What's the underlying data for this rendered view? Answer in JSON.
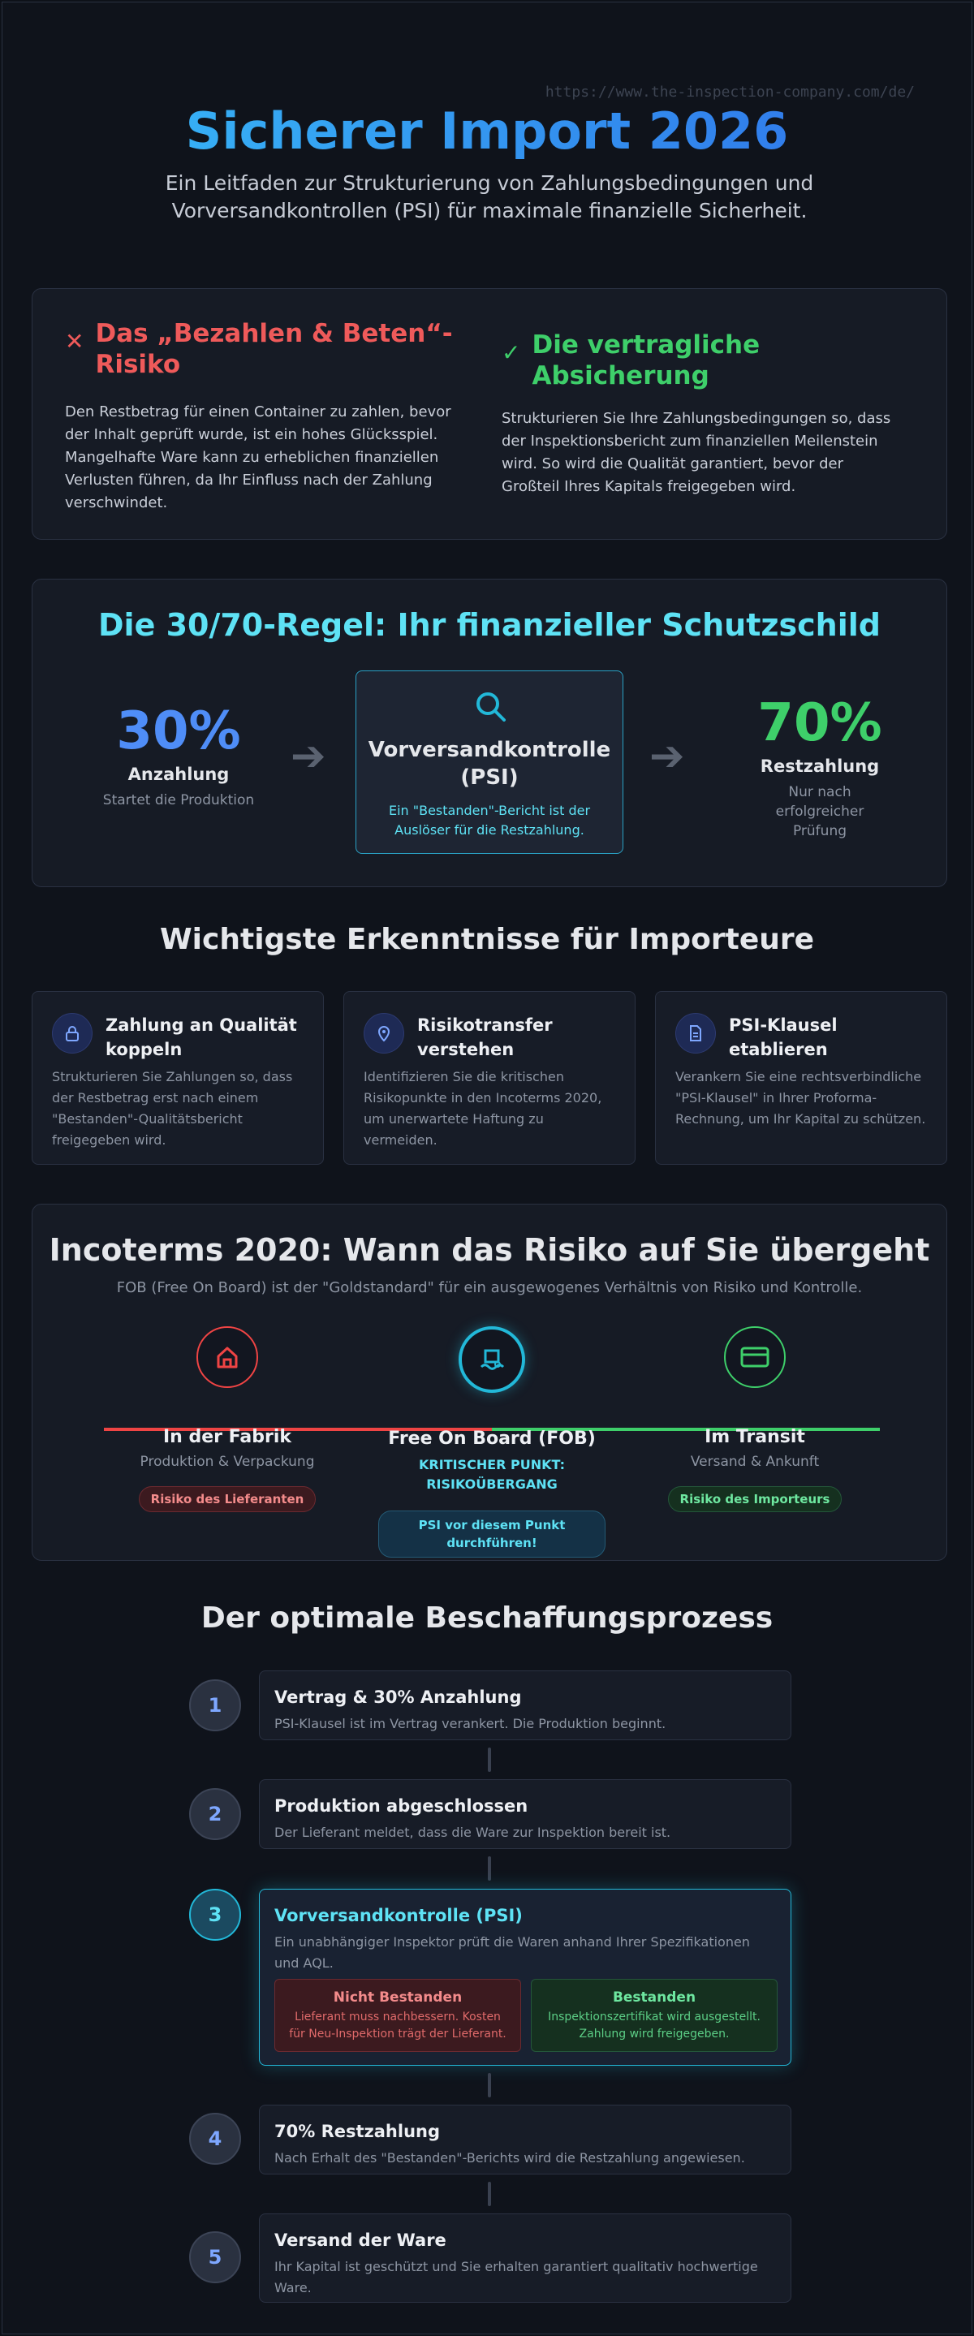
{
  "header": {
    "url": "https://www.the-inspection-company.com/de/",
    "title": "Sicherer Import 2026",
    "subtitle": "Ein Leitfaden zur Strukturierung von Zahlungsbedingungen und Vorversandkontrollen (PSI) für maximale finanzielle Sicherheit."
  },
  "risk": {
    "left": {
      "icon": "x-icon",
      "title": "Das „Bezahlen & Beten“-Risiko",
      "text": "Den Restbetrag für einen Container zu zahlen, bevor der Inhalt geprüft wurde, ist ein hohes Glücksspiel. Mangelhafte Ware kann zu erheblichen finanziellen Verlusten führen, da Ihr Einfluss nach der Zahlung verschwindet.",
      "color": "#ef5a5a"
    },
    "right": {
      "icon": "check-icon",
      "title": "Die vertragliche Absicherung",
      "text": "Strukturieren Sie Ihre Zahlungsbedingungen so, dass der Inspektionsbericht zum finanziellen Meilenstein wird. So wird die Qualität garantiert, bevor der Großteil Ihres Kapitals freigegeben wird.",
      "color": "#3ecf6a"
    }
  },
  "rule": {
    "title": "Die 30/70-Regel: Ihr finanzieller Schutzschild",
    "left": {
      "value": "30%",
      "label": "Anzahlung",
      "sub": "Startet die Produktion",
      "color": "#4f8df7"
    },
    "center": {
      "icon": "search-icon",
      "title": "Vorversandkontrolle (PSI)",
      "desc": "Ein \"Bestanden\"-Bericht ist der Auslöser für die Restzahlung."
    },
    "right": {
      "value": "70%",
      "label": "Restzahlung",
      "sub": "Nur nach erfolgreicher Prüfung",
      "color": "#3ecf6a"
    }
  },
  "insights": {
    "title": "Wichtigste Erkenntnisse für Importeure",
    "items": [
      {
        "icon": "lock-icon",
        "title": "Zahlung an Qualität koppeln",
        "text": "Strukturieren Sie Zahlungen so, dass der Restbetrag erst nach einem \"Bestanden\"-Qualitätsbericht freigegeben wird."
      },
      {
        "icon": "location-pin-icon",
        "title": "Risikotransfer verstehen",
        "text": "Identifizieren Sie die kritischen Risikopunkte in den Incoterms 2020, um unerwartete Haftung zu vermeiden."
      },
      {
        "icon": "document-icon",
        "title": "PSI-Klausel etablieren",
        "text": "Verankern Sie eine rechtsverbindliche \"PSI-Klausel\" in Ihrer Proforma-Rechnung, um Ihr Kapital zu schützen."
      }
    ]
  },
  "incoterms": {
    "title": "Incoterms 2020: Wann das Risiko auf Sie übergeht",
    "subtitle": "FOB (Free On Board) ist der \"Goldstandard\" für ein ausgewogenes Verhältnis von Risiko und Kontrolle.",
    "nodes": [
      {
        "icon": "factory-icon",
        "title": "In der Fabrik",
        "sub": "Produktion & Verpackung",
        "pill": "Risiko des Lieferanten",
        "color": "#ef4444"
      },
      {
        "icon": "ship-icon",
        "title": "Free On Board (FOB)",
        "sub": "KRITISCHER PUNKT: RISIKOÜBERGANG",
        "pill": "PSI vor diesem Punkt durchführen!",
        "color": "#22b8d8"
      },
      {
        "icon": "card-icon",
        "title": "Im Transit",
        "sub": "Versand & Ankunft",
        "pill": "Risiko des Importeurs",
        "color": "#3ecf6a"
      }
    ]
  },
  "process": {
    "title": "Der optimale Beschaffungsprozess",
    "steps": [
      {
        "num": "1",
        "title": "Vertrag & 30% Anzahlung",
        "text": "PSI-Klausel ist im Vertrag verankert. Die Produktion beginnt."
      },
      {
        "num": "2",
        "title": "Produktion abgeschlossen",
        "text": "Der Lieferant meldet, dass die Ware zur Inspektion bereit ist."
      },
      {
        "num": "3",
        "title": "Vorversandkontrolle (PSI)",
        "text": "Ein unabhängiger Inspektor prüft die Waren anhand Ihrer Spezifikationen und AQL.",
        "fail": {
          "title": "Nicht Bestanden",
          "text": "Lieferant muss nachbessern. Kosten für Neu-Inspektion trägt der Lieferant."
        },
        "pass": {
          "title": "Bestanden",
          "text": "Inspektionszertifikat wird ausgestellt. Zahlung wird freigegeben."
        }
      },
      {
        "num": "4",
        "title": "70% Restzahlung",
        "text": "Nach Erhalt des \"Bestanden\"-Berichts wird die Restzahlung angewiesen."
      },
      {
        "num": "5",
        "title": "Versand der Ware",
        "text": "Ihr Kapital ist geschützt und Sie erhalten garantiert qualitativ hochwertige Ware."
      }
    ]
  }
}
